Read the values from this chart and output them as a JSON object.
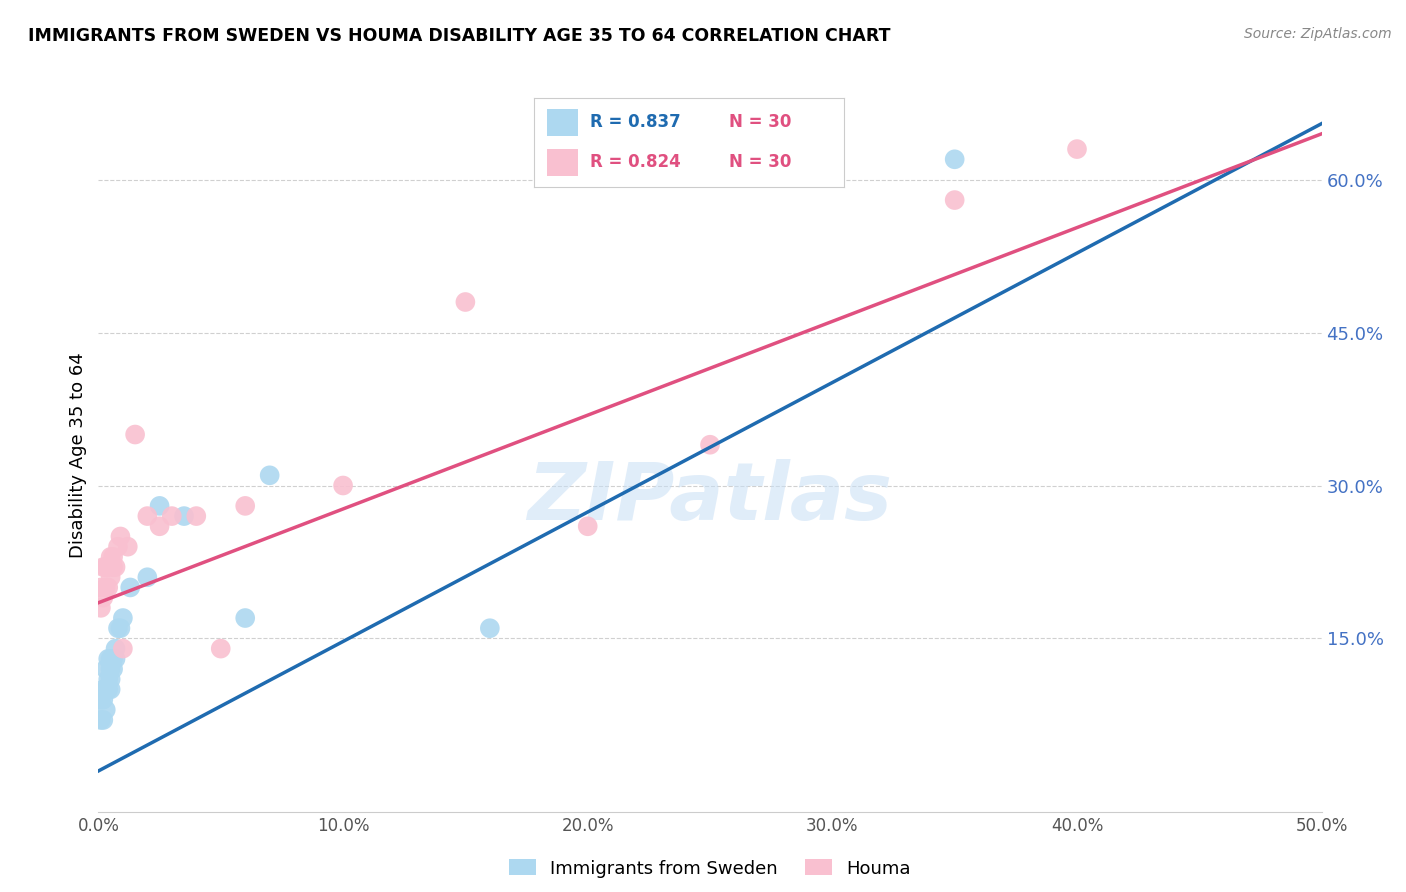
{
  "title": "IMMIGRANTS FROM SWEDEN VS HOUMA DISABILITY AGE 35 TO 64 CORRELATION CHART",
  "source": "Source: ZipAtlas.com",
  "ylabel": "Disability Age 35 to 64",
  "xlim": [
    0.0,
    0.5
  ],
  "ylim": [
    -0.02,
    0.68
  ],
  "xticks": [
    0.0,
    0.1,
    0.2,
    0.3,
    0.4,
    0.5
  ],
  "yticks_right": [
    0.15,
    0.3,
    0.45,
    0.6
  ],
  "right_axis_color": "#4472C4",
  "grid_color": "#d0d0d0",
  "blue_color": "#ADD8F0",
  "pink_color": "#F9C0D0",
  "blue_line_color": "#1F6BB0",
  "pink_line_color": "#E05080",
  "legend_label1": "Immigrants from Sweden",
  "legend_label2": "Houma",
  "legend_r1": "R = 0.837",
  "legend_n1": "N = 30",
  "legend_r2": "R = 0.824",
  "legend_n2": "N = 30",
  "scatter_blue_x": [
    0.001,
    0.001,
    0.002,
    0.002,
    0.002,
    0.003,
    0.003,
    0.003,
    0.004,
    0.004,
    0.004,
    0.005,
    0.005,
    0.005,
    0.005,
    0.006,
    0.006,
    0.007,
    0.007,
    0.008,
    0.009,
    0.01,
    0.013,
    0.02,
    0.025,
    0.035,
    0.06,
    0.07,
    0.16,
    0.35
  ],
  "scatter_blue_y": [
    0.07,
    0.09,
    0.07,
    0.09,
    0.1,
    0.08,
    0.1,
    0.12,
    0.1,
    0.11,
    0.13,
    0.1,
    0.11,
    0.12,
    0.13,
    0.12,
    0.13,
    0.13,
    0.14,
    0.16,
    0.16,
    0.17,
    0.2,
    0.21,
    0.28,
    0.27,
    0.17,
    0.31,
    0.16,
    0.62
  ],
  "scatter_pink_x": [
    0.001,
    0.001,
    0.002,
    0.002,
    0.003,
    0.003,
    0.004,
    0.004,
    0.005,
    0.005,
    0.006,
    0.006,
    0.007,
    0.008,
    0.009,
    0.01,
    0.012,
    0.015,
    0.02,
    0.025,
    0.03,
    0.04,
    0.05,
    0.06,
    0.1,
    0.15,
    0.2,
    0.25,
    0.35,
    0.4
  ],
  "scatter_pink_y": [
    0.18,
    0.2,
    0.19,
    0.22,
    0.2,
    0.22,
    0.2,
    0.22,
    0.21,
    0.23,
    0.22,
    0.23,
    0.22,
    0.24,
    0.25,
    0.14,
    0.24,
    0.35,
    0.27,
    0.26,
    0.27,
    0.27,
    0.14,
    0.28,
    0.3,
    0.48,
    0.26,
    0.34,
    0.58,
    0.63
  ],
  "blue_line_x": [
    0.0,
    0.5
  ],
  "blue_line_y": [
    0.02,
    0.655
  ],
  "pink_line_x": [
    0.0,
    0.5
  ],
  "pink_line_y": [
    0.185,
    0.645
  ]
}
